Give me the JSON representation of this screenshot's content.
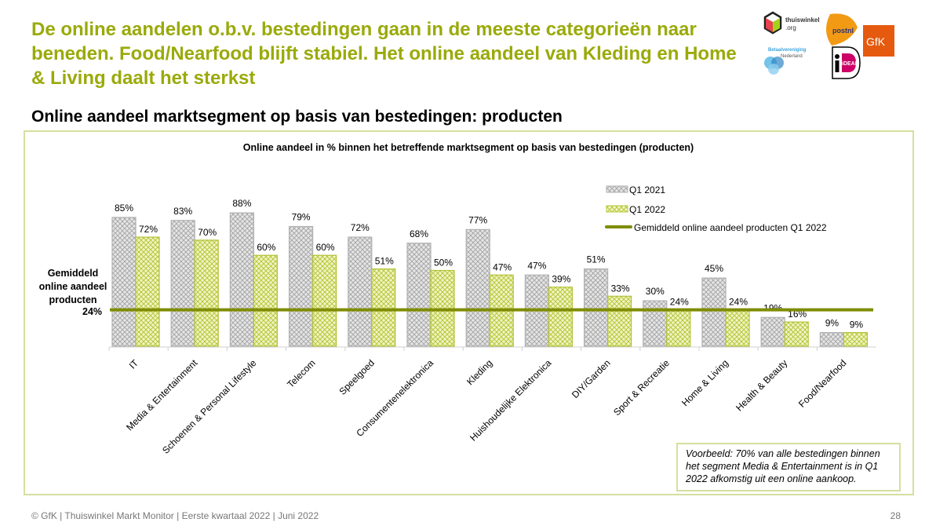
{
  "headline": "De online aandelen o.b.v. bestedingen gaan in de meeste categorieën naar beneden. Food/Nearfood blijft stabiel. Het online aandeel van Kleding en Home & Living daalt het sterkst",
  "subtitle": "Online aandeel marktsegment op basis van bestedingen: producten",
  "logos": {
    "thuiswinkel": [
      "thuiswinkel",
      ".org"
    ],
    "postnl": "postnl",
    "gfk": "GfK",
    "betaalvereniging": [
      "Betaalvereniging",
      "Nederland"
    ],
    "ideal": "iDEAL"
  },
  "average": {
    "label_lines": [
      "Gemiddeld",
      "online aandeel",
      "producten"
    ],
    "value_label": "24%"
  },
  "note": "Voorbeeld: 70% van alle bestedingen binnen het segment Media & Entertainment is in Q1 2022 afkomstig uit een online aankoop.",
  "footer": "© GfK | Thuiswinkel Markt Monitor | Eerste kwartaal 2022 | Juni 2022",
  "page_number": "28",
  "colors": {
    "accent": "#9aaa0a",
    "avg_line": "#7f8c00",
    "q2021": "#c8c8c8",
    "q2022": "#c6d34a"
  },
  "chart_data": {
    "type": "bar",
    "title": "Online aandeel in % binnen het betreffende marktsegment op basis van bestedingen (producten)",
    "xlabel": "",
    "ylabel": "",
    "ylim": [
      0,
      100
    ],
    "grid": false,
    "legend_position": "top-right",
    "categories": [
      "IT",
      "Media & Entertainment",
      "Schoenen & Personal Lifestyle",
      "Telecom",
      "Speelgoed",
      "Consumentenelektronica",
      "Kleding",
      "Huishoudelijke Elektronica",
      "DIY/Garden",
      "Sport & Recreatie",
      "Home & Living",
      "Health & Beauty",
      "Food/Nearfood"
    ],
    "series": [
      {
        "name": "Q1 2021",
        "values": [
          85,
          83,
          88,
          79,
          72,
          68,
          77,
          47,
          51,
          30,
          45,
          19,
          9
        ],
        "labels": [
          "85%",
          "83%",
          "88%",
          "79%",
          "72%",
          "68%",
          "77%",
          "47%",
          "51%",
          "30%",
          "45%",
          "19%",
          "9%"
        ]
      },
      {
        "name": "Q1 2022",
        "values": [
          72,
          70,
          60,
          60,
          51,
          50,
          47,
          39,
          33,
          24,
          24,
          16,
          9
        ],
        "labels": [
          "72%",
          "70%",
          "60%",
          "60%",
          "51%",
          "50%",
          "47%",
          "39%",
          "33%",
          "24%",
          "24%",
          "16%",
          "9%"
        ]
      }
    ],
    "reference_line": {
      "name": "Gemiddeld online aandeel producten Q1 2022",
      "value": 24
    }
  }
}
